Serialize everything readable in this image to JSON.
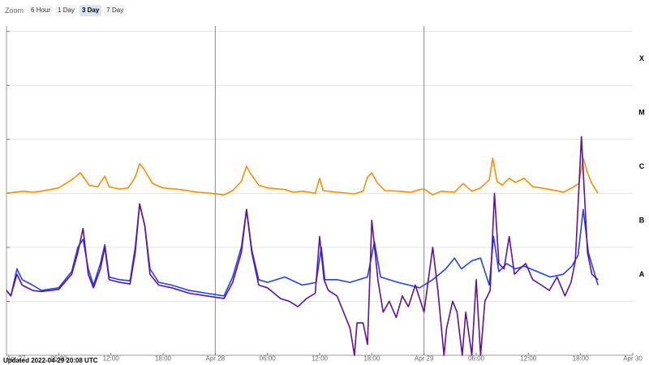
{
  "zoom": {
    "label": "Zoom",
    "options": [
      "6 Hour",
      "1 Day",
      "3 Day",
      "7 Day"
    ],
    "selected": "3 Day"
  },
  "updated_text": "Updated 2022-04-29 20:08 UTC",
  "chart_data": {
    "type": "line",
    "y_scale": "log",
    "flare_classes": [
      "X",
      "M",
      "C",
      "B",
      "A"
    ],
    "x_tick_labels": [
      "Apr 27",
      "06:00",
      "12:00",
      "18:00",
      "Apr 28",
      "06:00",
      "12:00",
      "18:00",
      "Apr 29",
      "06:00",
      "12:00",
      "18:00",
      "Apr 30"
    ],
    "x_tick_hours": [
      0,
      6,
      12,
      18,
      24,
      30,
      36,
      42,
      48,
      54,
      60,
      66,
      72
    ],
    "xlim_hours": [
      0,
      72
    ],
    "ylim_log10": [
      -9,
      -2.9
    ],
    "grid": true,
    "colors": {
      "orange": "#ff8c00",
      "blue": "#2040ff",
      "purple": "#6010a0"
    },
    "series": [
      {
        "color": "orange",
        "points": [
          [
            0,
            -6.0
          ],
          [
            2,
            -5.96
          ],
          [
            3,
            -5.98
          ],
          [
            4,
            -5.96
          ],
          [
            6,
            -5.9
          ],
          [
            7.5,
            -5.75
          ],
          [
            8.5,
            -5.62
          ],
          [
            9.5,
            -5.85
          ],
          [
            10.5,
            -5.88
          ],
          [
            11.3,
            -5.68
          ],
          [
            11.8,
            -5.88
          ],
          [
            13,
            -5.92
          ],
          [
            14,
            -5.9
          ],
          [
            14.8,
            -5.7
          ],
          [
            15.3,
            -5.45
          ],
          [
            15.8,
            -5.55
          ],
          [
            16.8,
            -5.82
          ],
          [
            18,
            -5.9
          ],
          [
            20,
            -5.93
          ],
          [
            22,
            -5.98
          ],
          [
            23.5,
            -6.0
          ],
          [
            25,
            -6.03
          ],
          [
            26,
            -5.95
          ],
          [
            27,
            -5.78
          ],
          [
            27.6,
            -5.5
          ],
          [
            28,
            -5.62
          ],
          [
            29,
            -5.85
          ],
          [
            30,
            -5.9
          ],
          [
            32,
            -5.93
          ],
          [
            33,
            -5.98
          ],
          [
            34,
            -5.96
          ],
          [
            35.5,
            -6.0
          ],
          [
            36,
            -5.72
          ],
          [
            36.4,
            -5.95
          ],
          [
            38,
            -5.98
          ],
          [
            40,
            -6.01
          ],
          [
            41,
            -5.96
          ],
          [
            41.5,
            -5.7
          ],
          [
            42,
            -5.62
          ],
          [
            42.6,
            -5.8
          ],
          [
            43.5,
            -5.95
          ],
          [
            45,
            -5.96
          ],
          [
            46.5,
            -5.98
          ],
          [
            47.5,
            -5.93
          ],
          [
            48,
            -5.92
          ],
          [
            49,
            -6.03
          ],
          [
            50,
            -5.96
          ],
          [
            51.5,
            -5.98
          ],
          [
            52.5,
            -5.82
          ],
          [
            53.5,
            -5.96
          ],
          [
            54.5,
            -5.9
          ],
          [
            55.5,
            -5.75
          ],
          [
            55.9,
            -5.35
          ],
          [
            56.4,
            -5.78
          ],
          [
            57,
            -5.85
          ],
          [
            57.8,
            -5.72
          ],
          [
            58.5,
            -5.8
          ],
          [
            59.5,
            -5.72
          ],
          [
            60.5,
            -5.88
          ],
          [
            61.5,
            -5.9
          ],
          [
            62.5,
            -5.93
          ],
          [
            63.5,
            -5.96
          ],
          [
            64,
            -5.98
          ],
          [
            65,
            -5.9
          ],
          [
            65.8,
            -5.82
          ],
          [
            66.3,
            -5.35
          ],
          [
            66.8,
            -5.62
          ],
          [
            67.3,
            -5.82
          ],
          [
            68,
            -6.0
          ]
        ]
      },
      {
        "color": "blue",
        "points": [
          [
            0,
            -7.8
          ],
          [
            0.5,
            -7.9
          ],
          [
            1.2,
            -7.4
          ],
          [
            1.8,
            -7.6
          ],
          [
            3,
            -7.7
          ],
          [
            4,
            -7.8
          ],
          [
            6,
            -7.75
          ],
          [
            7.5,
            -7.45
          ],
          [
            8.2,
            -7.0
          ],
          [
            8.8,
            -6.85
          ],
          [
            9.4,
            -7.4
          ],
          [
            10,
            -7.7
          ],
          [
            10.8,
            -7.3
          ],
          [
            11.3,
            -6.95
          ],
          [
            11.8,
            -7.55
          ],
          [
            13,
            -7.6
          ],
          [
            14.2,
            -7.62
          ],
          [
            14.8,
            -7.0
          ],
          [
            15.3,
            -6.2
          ],
          [
            15.9,
            -6.6
          ],
          [
            16.5,
            -7.4
          ],
          [
            17.5,
            -7.65
          ],
          [
            19,
            -7.7
          ],
          [
            21,
            -7.8
          ],
          [
            23,
            -7.85
          ],
          [
            25,
            -7.9
          ],
          [
            26,
            -7.55
          ],
          [
            27,
            -7.0
          ],
          [
            27.6,
            -6.3
          ],
          [
            28.2,
            -7.05
          ],
          [
            29,
            -7.6
          ],
          [
            30,
            -7.65
          ],
          [
            32,
            -7.55
          ],
          [
            34,
            -7.7
          ],
          [
            35.6,
            -7.65
          ],
          [
            36.2,
            -7.0
          ],
          [
            36.6,
            -7.6
          ],
          [
            38,
            -7.6
          ],
          [
            39.5,
            -7.65
          ],
          [
            41.5,
            -7.55
          ],
          [
            42.3,
            -6.9
          ],
          [
            43,
            -7.55
          ],
          [
            45,
            -7.65
          ],
          [
            47.5,
            -7.75
          ],
          [
            48,
            -7.7
          ],
          [
            49,
            -7.6
          ],
          [
            50.5,
            -7.4
          ],
          [
            51.5,
            -7.2
          ],
          [
            52.3,
            -7.4
          ],
          [
            53.5,
            -7.25
          ],
          [
            54.5,
            -7.2
          ],
          [
            55.5,
            -7.7
          ],
          [
            56,
            -6.8
          ],
          [
            56.6,
            -7.45
          ],
          [
            57.5,
            -7.3
          ],
          [
            58.5,
            -7.4
          ],
          [
            59.5,
            -7.35
          ],
          [
            61,
            -7.45
          ],
          [
            62.5,
            -7.55
          ],
          [
            64,
            -7.5
          ],
          [
            65,
            -7.35
          ],
          [
            65.7,
            -7.15
          ],
          [
            66.3,
            -6.3
          ],
          [
            66.9,
            -7.1
          ],
          [
            68,
            -7.7
          ]
        ]
      },
      {
        "color": "purple",
        "points": [
          [
            0,
            -7.8
          ],
          [
            0.5,
            -7.9
          ],
          [
            1.2,
            -7.5
          ],
          [
            1.8,
            -7.7
          ],
          [
            3,
            -7.8
          ],
          [
            4,
            -7.82
          ],
          [
            6,
            -7.78
          ],
          [
            7.5,
            -7.5
          ],
          [
            8.2,
            -7.1
          ],
          [
            8.8,
            -6.65
          ],
          [
            9.4,
            -7.5
          ],
          [
            10,
            -7.75
          ],
          [
            10.8,
            -7.4
          ],
          [
            11.3,
            -7.0
          ],
          [
            11.8,
            -7.6
          ],
          [
            13,
            -7.65
          ],
          [
            14.2,
            -7.68
          ],
          [
            14.8,
            -7.1
          ],
          [
            15.3,
            -6.2
          ],
          [
            15.9,
            -6.6
          ],
          [
            16.5,
            -7.5
          ],
          [
            17.5,
            -7.7
          ],
          [
            19,
            -7.75
          ],
          [
            21,
            -7.85
          ],
          [
            23,
            -7.9
          ],
          [
            25,
            -7.95
          ],
          [
            26,
            -7.65
          ],
          [
            27,
            -7.1
          ],
          [
            27.6,
            -6.3
          ],
          [
            28.2,
            -7.1
          ],
          [
            29,
            -7.7
          ],
          [
            30,
            -7.75
          ],
          [
            31.5,
            -7.95
          ],
          [
            32.5,
            -8.0
          ],
          [
            33.5,
            -8.1
          ],
          [
            34.5,
            -7.95
          ],
          [
            35.5,
            -7.85
          ],
          [
            36,
            -6.8
          ],
          [
            36.5,
            -7.6
          ],
          [
            37,
            -7.8
          ],
          [
            38,
            -7.9
          ],
          [
            39,
            -8.3
          ],
          [
            39.5,
            -8.5
          ],
          [
            40,
            -9.0
          ],
          [
            40.3,
            -8.4
          ],
          [
            41,
            -8.4
          ],
          [
            41.5,
            -8.8
          ],
          [
            42,
            -6.5
          ],
          [
            42.7,
            -7.6
          ],
          [
            43.3,
            -8.2
          ],
          [
            44,
            -8.0
          ],
          [
            44.8,
            -8.3
          ],
          [
            45.5,
            -7.9
          ],
          [
            46.2,
            -8.1
          ],
          [
            47,
            -7.7
          ],
          [
            47.5,
            -7.95
          ],
          [
            48,
            -8.2
          ],
          [
            48.5,
            -7.6
          ],
          [
            49,
            -7.0
          ],
          [
            49.6,
            -7.8
          ],
          [
            50.3,
            -9.0
          ],
          [
            50.6,
            -8.5
          ],
          [
            51.3,
            -8.0
          ],
          [
            51.8,
            -8.2
          ],
          [
            52.4,
            -9.0
          ],
          [
            52.8,
            -8.2
          ],
          [
            53.5,
            -9.0
          ],
          [
            54,
            -7.6
          ],
          [
            54.5,
            -9.0
          ],
          [
            55,
            -8.0
          ],
          [
            55.6,
            -7.8
          ],
          [
            56.1,
            -6.0
          ],
          [
            56.6,
            -7.3
          ],
          [
            57.2,
            -7.4
          ],
          [
            57.8,
            -6.8
          ],
          [
            58.4,
            -7.5
          ],
          [
            59,
            -7.4
          ],
          [
            59.7,
            -7.3
          ],
          [
            60.5,
            -7.6
          ],
          [
            61.5,
            -7.7
          ],
          [
            62.4,
            -7.8
          ],
          [
            63.3,
            -7.55
          ],
          [
            64.2,
            -7.9
          ],
          [
            64.9,
            -7.65
          ],
          [
            65.4,
            -7.25
          ],
          [
            66.1,
            -4.95
          ],
          [
            66.8,
            -7.1
          ],
          [
            67.3,
            -7.5
          ],
          [
            68,
            -7.6
          ]
        ]
      }
    ]
  }
}
